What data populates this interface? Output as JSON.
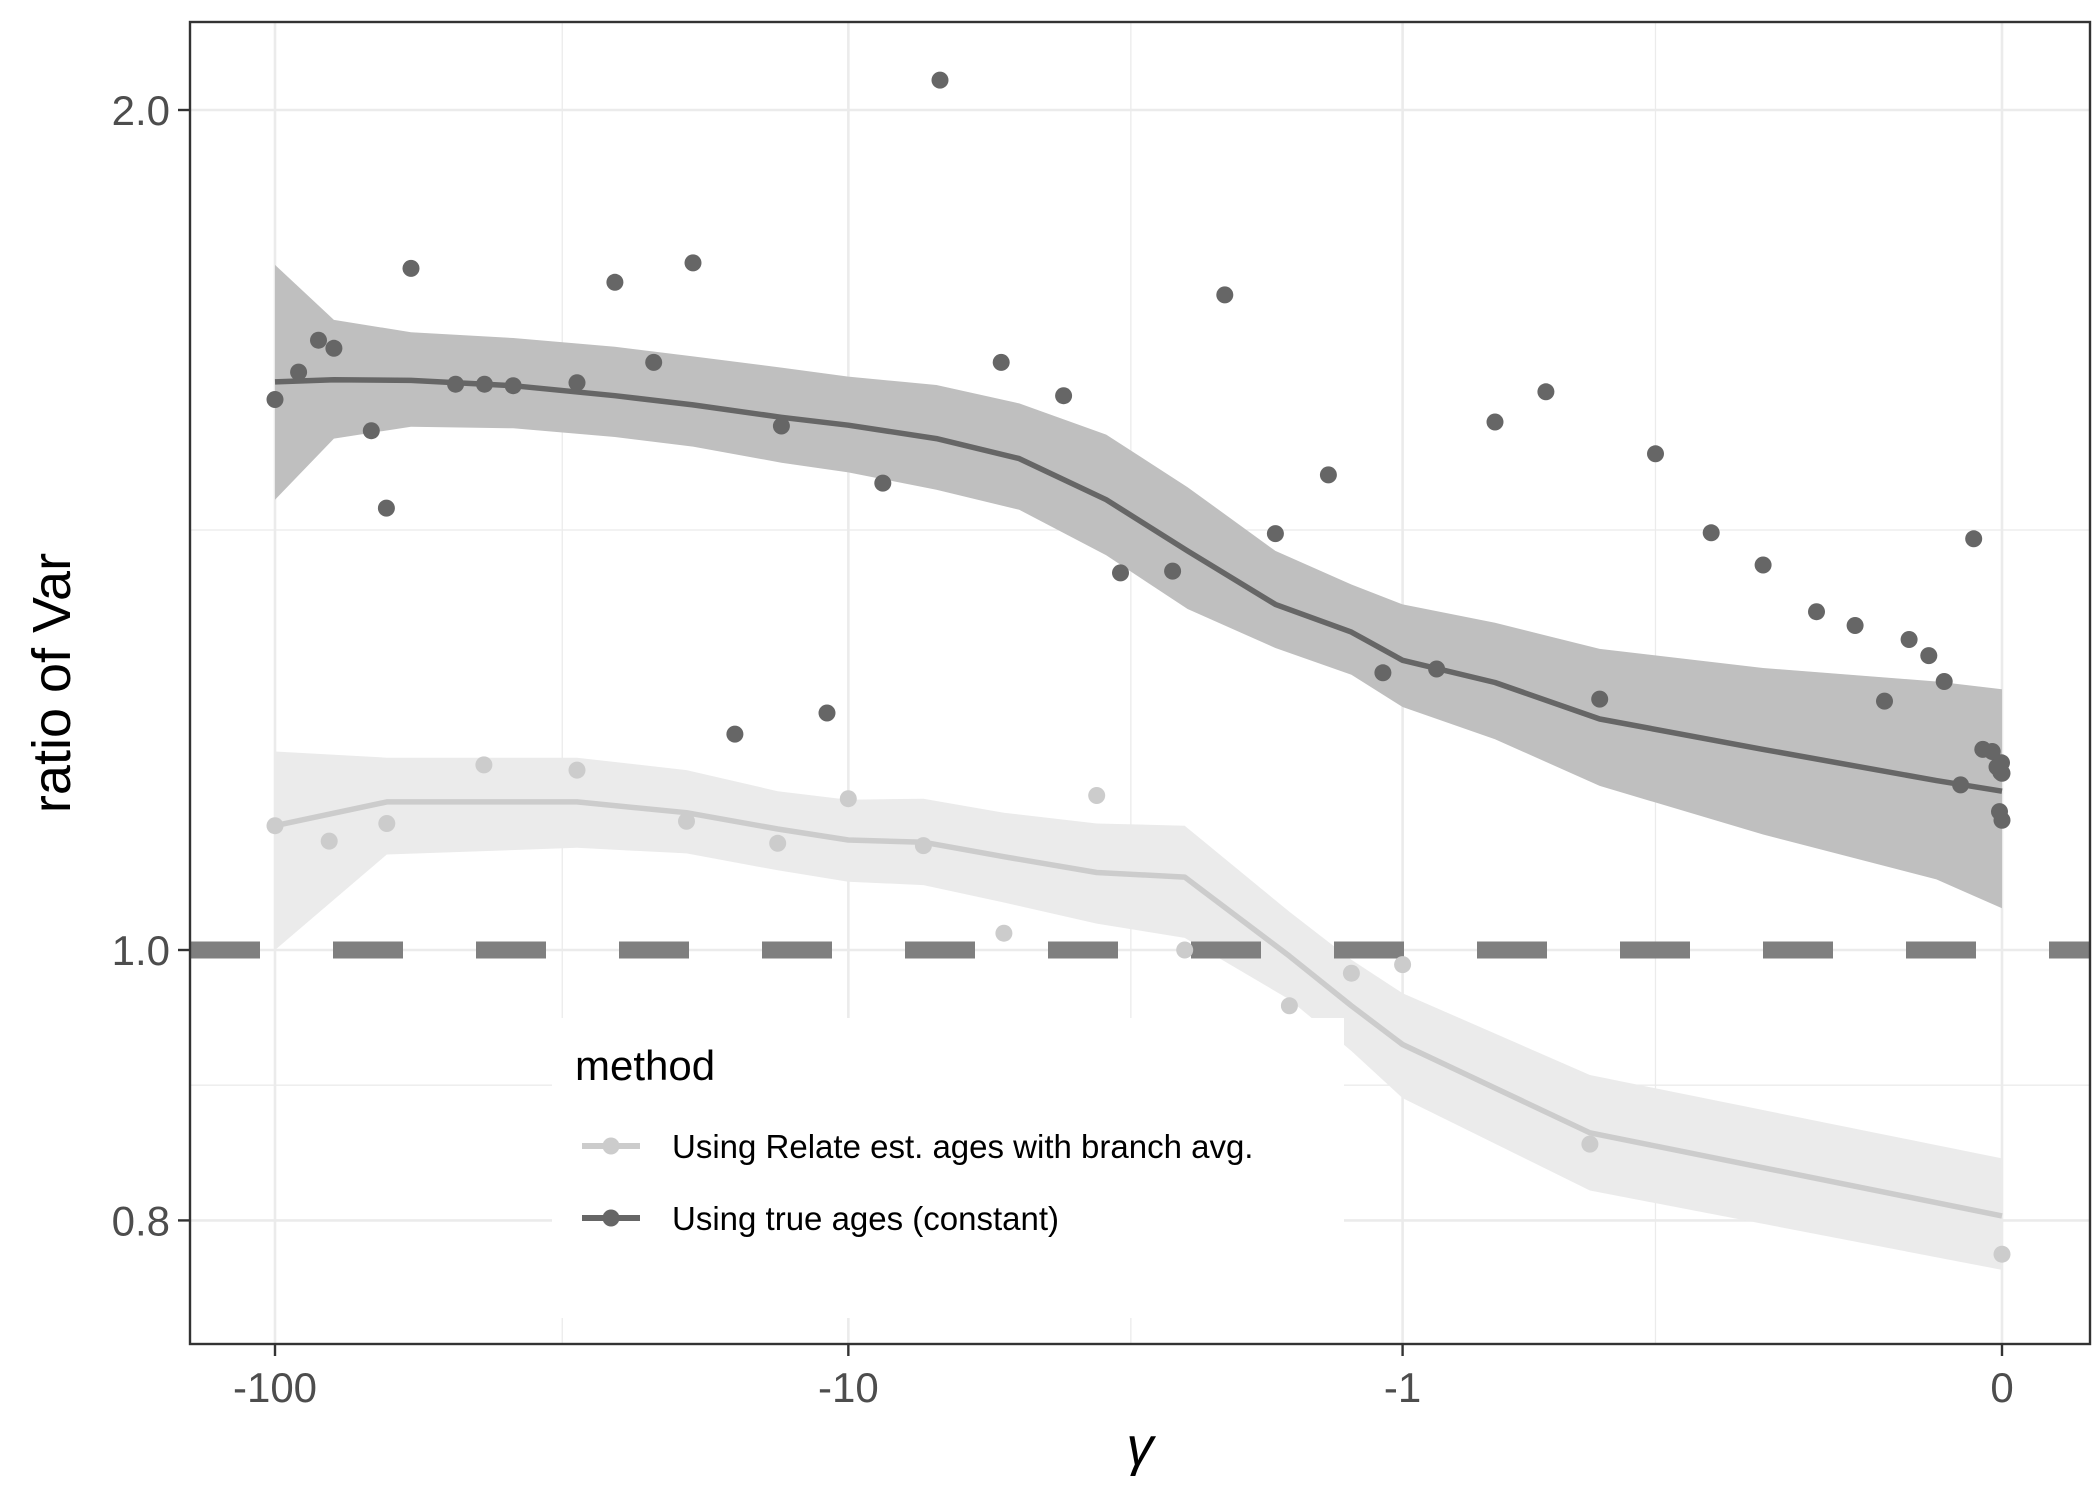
{
  "chart_data": {
    "type": "scatter",
    "xlabel": "γ",
    "ylabel": "ratio of Var",
    "x_scale": "pseudo-log (signed)",
    "y_scale": "log",
    "x_ticks": [
      -100,
      -10,
      -1,
      0
    ],
    "x_tick_labels": [
      "-100",
      "-10",
      "-1",
      "0"
    ],
    "y_ticks": [
      0.8,
      1.0,
      2.0
    ],
    "y_tick_labels": [
      "0.8",
      "1.0",
      "2.0"
    ],
    "xlim": [
      -100,
      0
    ],
    "ylim": [
      0.74,
      2.05
    ],
    "grid": true,
    "reference_line": {
      "y": 1.0,
      "style": "dashed",
      "color": "#7f7f7f"
    },
    "legend": {
      "title": "method",
      "placement": "bottom-center, inside plot",
      "entries": [
        "Using Relate est. ages with branch avg.",
        "Using true ages (constant)"
      ]
    },
    "series": [
      {
        "name": "Using Relate est. ages with branch avg.",
        "color": "#cccccc",
        "band_color": "#ebebeb",
        "points": [
          [
            -100,
            1.108
          ],
          [
            -80.5,
            1.094
          ],
          [
            -63.9,
            1.11
          ],
          [
            -43.3,
            1.165
          ],
          [
            -29.8,
            1.16
          ],
          [
            -19.2,
            1.112
          ],
          [
            -13.3,
            1.092
          ],
          [
            -10.0,
            1.133
          ],
          [
            -7.38,
            1.09
          ],
          [
            -5.32,
            1.014
          ],
          [
            -3.64,
            1.136
          ],
          [
            -2.53,
            1.0
          ],
          [
            -1.63,
            0.955
          ],
          [
            -1.25,
            0.981
          ],
          [
            -1.0,
            0.988
          ],
          [
            -0.42,
            0.852
          ],
          [
            -0.0,
            0.778
          ]
        ],
        "fit": [
          [
            -100,
            1.108
          ],
          [
            -63.9,
            1.13
          ],
          [
            -29.8,
            1.13
          ],
          [
            -19.2,
            1.12
          ],
          [
            -13.3,
            1.105
          ],
          [
            -10.0,
            1.095
          ],
          [
            -7.38,
            1.093
          ],
          [
            -5.32,
            1.08
          ],
          [
            -3.64,
            1.066
          ],
          [
            -2.53,
            1.062
          ],
          [
            -1.63,
            0.995
          ],
          [
            -1.25,
            0.955
          ],
          [
            -1.0,
            0.925
          ],
          [
            -0.42,
            0.86
          ],
          [
            0.0,
            0.803
          ]
        ],
        "band_lower": [
          [
            -100,
            1.0
          ],
          [
            -63.9,
            1.082
          ],
          [
            -29.8,
            1.088
          ],
          [
            -19.2,
            1.083
          ],
          [
            -13.3,
            1.068
          ],
          [
            -10.0,
            1.058
          ],
          [
            -7.38,
            1.055
          ],
          [
            -5.32,
            1.04
          ],
          [
            -3.64,
            1.022
          ],
          [
            -2.53,
            1.01
          ],
          [
            -1.63,
            0.96
          ],
          [
            -1.25,
            0.92
          ],
          [
            -1.0,
            0.885
          ],
          [
            -0.42,
            0.82
          ],
          [
            0.0,
            0.768
          ]
        ],
        "band_upper": [
          [
            -100,
            1.178
          ],
          [
            -63.9,
            1.172
          ],
          [
            -29.8,
            1.172
          ],
          [
            -19.2,
            1.16
          ],
          [
            -13.3,
            1.14
          ],
          [
            -10.0,
            1.132
          ],
          [
            -7.38,
            1.133
          ],
          [
            -5.32,
            1.12
          ],
          [
            -3.64,
            1.11
          ],
          [
            -2.53,
            1.108
          ],
          [
            -1.63,
            1.032
          ],
          [
            -1.25,
            0.992
          ],
          [
            -1.0,
            0.965
          ],
          [
            -0.42,
            0.902
          ],
          [
            0.0,
            0.842
          ]
        ]
      },
      {
        "name": "Using true ages (constant)",
        "color": "#666666",
        "band_color": "#bfbfbf",
        "points": [
          [
            -100,
            1.575
          ],
          [
            -91.0,
            1.611
          ],
          [
            -84.0,
            1.654
          ],
          [
            -79.0,
            1.643
          ],
          [
            -68.0,
            1.535
          ],
          [
            -64.0,
            1.44
          ],
          [
            -58.0,
            1.755
          ],
          [
            -48.5,
            1.595
          ],
          [
            -43.2,
            1.595
          ],
          [
            -38.5,
            1.593
          ],
          [
            -29.8,
            1.597
          ],
          [
            -25.6,
            1.735
          ],
          [
            -21.9,
            1.624
          ],
          [
            -18.7,
            1.763
          ],
          [
            -15.8,
            1.195
          ],
          [
            -13.1,
            1.541
          ],
          [
            -10.9,
            1.216
          ],
          [
            -8.7,
            1.47
          ],
          [
            -6.9,
            2.05
          ],
          [
            -5.38,
            1.624
          ],
          [
            -4.17,
            1.58
          ],
          [
            -3.3,
            1.365
          ],
          [
            -2.66,
            1.367
          ],
          [
            -2.14,
            1.717
          ],
          [
            -1.73,
            1.41
          ],
          [
            -1.38,
            1.48
          ],
          [
            -1.09,
            1.257
          ],
          [
            -0.86,
            1.261
          ],
          [
            -0.66,
            1.546
          ],
          [
            -0.52,
            1.585
          ],
          [
            -0.4,
            1.23
          ],
          [
            -0.3,
            1.506
          ],
          [
            -0.22,
            1.411
          ],
          [
            -0.16,
            1.374
          ],
          [
            -0.11,
            1.322
          ],
          [
            -0.08,
            1.307
          ],
          [
            -0.06,
            1.228
          ],
          [
            -0.045,
            1.292
          ],
          [
            -0.034,
            1.275
          ],
          [
            -0.026,
            1.248
          ],
          [
            -0.018,
            1.146
          ],
          [
            -0.012,
            1.404
          ],
          [
            -0.008,
            1.18
          ],
          [
            -0.004,
            1.178
          ],
          [
            -0.002,
            1.163
          ],
          [
            -0.001,
            1.121
          ],
          [
            -0.0005,
            1.158
          ],
          [
            -0.0002,
            1.167
          ],
          [
            0.0,
            1.157
          ],
          [
            0.0,
            1.113
          ]
        ],
        "fit": [
          [
            -100,
            1.598
          ],
          [
            -79.0,
            1.601
          ],
          [
            -58.0,
            1.6
          ],
          [
            -38.5,
            1.593
          ],
          [
            -25.6,
            1.58
          ],
          [
            -18.7,
            1.568
          ],
          [
            -13.1,
            1.552
          ],
          [
            -10.0,
            1.542
          ],
          [
            -7.0,
            1.525
          ],
          [
            -5.0,
            1.5
          ],
          [
            -3.5,
            1.45
          ],
          [
            -2.5,
            1.39
          ],
          [
            -1.73,
            1.33
          ],
          [
            -1.25,
            1.3
          ],
          [
            -1.0,
            1.27
          ],
          [
            -0.66,
            1.247
          ],
          [
            -0.4,
            1.21
          ],
          [
            -0.16,
            1.18
          ],
          [
            -0.03,
            1.15
          ],
          [
            0.0,
            1.14
          ]
        ],
        "band_lower": [
          [
            -100,
            1.45
          ],
          [
            -79.0,
            1.525
          ],
          [
            -58.0,
            1.54
          ],
          [
            -38.5,
            1.538
          ],
          [
            -25.6,
            1.527
          ],
          [
            -18.7,
            1.515
          ],
          [
            -13.1,
            1.495
          ],
          [
            -10.0,
            1.483
          ],
          [
            -7.0,
            1.462
          ],
          [
            -5.0,
            1.438
          ],
          [
            -3.5,
            1.385
          ],
          [
            -2.5,
            1.325
          ],
          [
            -1.73,
            1.283
          ],
          [
            -1.25,
            1.255
          ],
          [
            -1.0,
            1.222
          ],
          [
            -0.66,
            1.19
          ],
          [
            -0.4,
            1.145
          ],
          [
            -0.16,
            1.1
          ],
          [
            -0.03,
            1.06
          ],
          [
            0.0,
            1.035
          ]
        ],
        "band_upper": [
          [
            -100,
            1.76
          ],
          [
            -79.0,
            1.682
          ],
          [
            -58.0,
            1.665
          ],
          [
            -38.5,
            1.657
          ],
          [
            -25.6,
            1.645
          ],
          [
            -18.7,
            1.632
          ],
          [
            -13.1,
            1.617
          ],
          [
            -10.0,
            1.605
          ],
          [
            -7.0,
            1.594
          ],
          [
            -5.0,
            1.57
          ],
          [
            -3.5,
            1.53
          ],
          [
            -2.5,
            1.465
          ],
          [
            -1.73,
            1.39
          ],
          [
            -1.25,
            1.352
          ],
          [
            -1.0,
            1.33
          ],
          [
            -0.66,
            1.31
          ],
          [
            -0.4,
            1.282
          ],
          [
            -0.16,
            1.262
          ],
          [
            -0.03,
            1.248
          ],
          [
            0.0,
            1.24
          ]
        ]
      }
    ]
  }
}
